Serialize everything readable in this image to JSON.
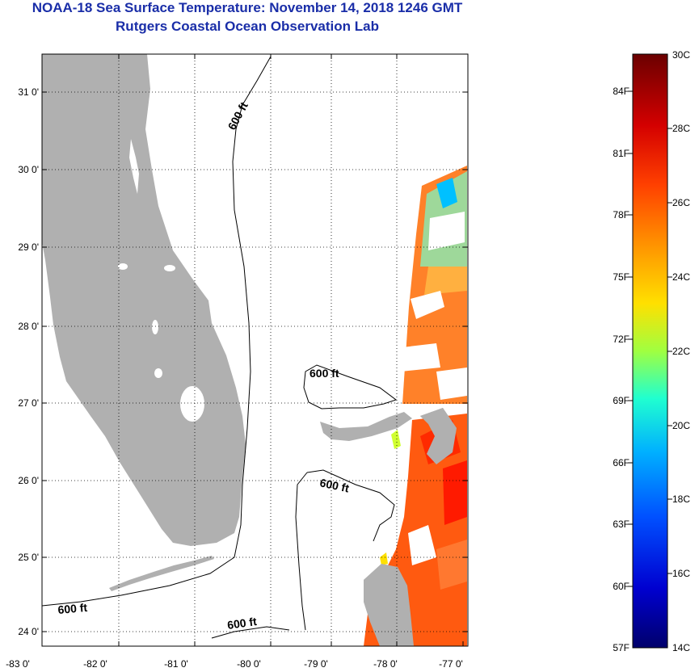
{
  "header": {
    "title": "NOAA-18 Sea Surface Temperature:  November 14, 2018 1246 GMT",
    "subtitle": "Rutgers Coastal Ocean Observation Lab"
  },
  "map": {
    "x_axis": {
      "ticks": [
        {
          "value": -83,
          "label": "-83 0'"
        },
        {
          "value": -82,
          "label": "-82 0'"
        },
        {
          "value": -81,
          "label": "-81 0'"
        },
        {
          "value": -80,
          "label": "-80 0'"
        },
        {
          "value": -79,
          "label": "-79 0'"
        },
        {
          "value": -78,
          "label": "-78 0'"
        },
        {
          "value": -77,
          "label": "-77 0'"
        }
      ]
    },
    "y_axis": {
      "ticks": [
        {
          "value": 31,
          "label": "31 0'"
        },
        {
          "value": 30,
          "label": "30 0'"
        },
        {
          "value": 29,
          "label": "29 0'"
        },
        {
          "value": 28,
          "label": "28 0'"
        },
        {
          "value": 27,
          "label": "27 0'"
        },
        {
          "value": 26,
          "label": "26 0'"
        },
        {
          "value": 25,
          "label": "25 0'"
        },
        {
          "value": 24,
          "label": "24 0'"
        }
      ]
    },
    "contour_labels": [
      {
        "text": "600 ft"
      },
      {
        "text": "600 ft"
      },
      {
        "text": "600 ft"
      },
      {
        "text": "600 ft"
      },
      {
        "text": "600 ft"
      }
    ],
    "land_color": "#b0b0b0"
  },
  "colorbar": {
    "celsius_labels": [
      "30C",
      "28C",
      "26C",
      "24C",
      "22C",
      "20C",
      "18C",
      "16C",
      "14C"
    ],
    "fahrenheit_labels": [
      "84F",
      "81F",
      "78F",
      "75F",
      "72F",
      "69F",
      "66F",
      "63F",
      "60F",
      "57F"
    ],
    "colors": [
      "#7f0000",
      "#ff0000",
      "#ff8000",
      "#ffff00",
      "#80ff80",
      "#00ffff",
      "#0080ff",
      "#0000ff",
      "#00007f"
    ]
  }
}
